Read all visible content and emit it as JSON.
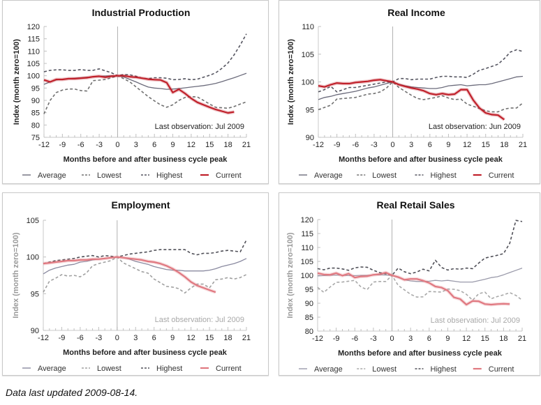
{
  "footer": {
    "text": "Data last updated 2009-08-14."
  },
  "chart_data": [
    {
      "type": "line",
      "title": "Industrial Production",
      "xlabel": "Months before and after business cycle peak",
      "ylabel": "Index (month zero=100)",
      "xlim": [
        -12,
        21
      ],
      "ylim": [
        75,
        120
      ],
      "xticks": [
        -12,
        -9,
        -6,
        -3,
        0,
        3,
        6,
        9,
        12,
        15,
        18,
        21
      ],
      "yticks": [
        75,
        80,
        85,
        90,
        95,
        100,
        105,
        110,
        115,
        120
      ],
      "annotation": "Last observation: Jul 2009",
      "legend": [
        "Average",
        "Lowest",
        "Highest",
        "Current"
      ],
      "legend_position": "bottom",
      "x": [
        -12,
        -11,
        -10,
        -9,
        -8,
        -7,
        -6,
        -5,
        -4,
        -3,
        -2,
        -1,
        0,
        1,
        2,
        3,
        4,
        5,
        6,
        7,
        8,
        9,
        10,
        11,
        12,
        13,
        14,
        15,
        16,
        17,
        18,
        19,
        20,
        21
      ],
      "series": [
        {
          "name": "Average",
          "style": "solid",
          "color": "#6b6b7b",
          "values": [
            96.5,
            97.5,
            98.3,
            98.6,
            98.8,
            99.0,
            99.2,
            99.4,
            99.6,
            99.8,
            99.9,
            100.0,
            100.0,
            99.5,
            98.5,
            97.5,
            96.4,
            95.4,
            95.0,
            94.8,
            94.5,
            94.6,
            94.8,
            95.1,
            95.4,
            95.7,
            96.0,
            96.4,
            96.9,
            97.6,
            98.4,
            99.2,
            100.1,
            101.0
          ]
        },
        {
          "name": "Lowest",
          "style": "dashed",
          "color": "#707070",
          "values": [
            84.5,
            90.0,
            93.2,
            94.2,
            94.6,
            94.6,
            94.0,
            93.8,
            98.0,
            98.2,
            98.5,
            99.2,
            100.0,
            98.8,
            97.5,
            95.5,
            93.5,
            91.5,
            89.8,
            88.2,
            87.2,
            88.2,
            90.0,
            91.2,
            91.5,
            91.4,
            90.0,
            88.5,
            87.2,
            87.0,
            86.8,
            87.5,
            88.5,
            89.4
          ]
        },
        {
          "name": "Highest",
          "style": "dashed",
          "color": "#555560",
          "values": [
            101.6,
            102.2,
            102.4,
            102.4,
            102.2,
            102.2,
            102.5,
            102.2,
            102.2,
            102.8,
            102.0,
            101.2,
            100.0,
            100.5,
            100.4,
            99.8,
            99.0,
            98.8,
            99.2,
            99.2,
            99.0,
            98.4,
            98.5,
            98.8,
            98.4,
            98.6,
            99.4,
            100.2,
            101.2,
            103.0,
            105.2,
            108.5,
            112.5,
            117.0
          ]
        },
        {
          "name": "Current",
          "style": "solid-bold",
          "color": "#c0202a",
          "values": [
            98.3,
            97.5,
            98.5,
            98.5,
            98.8,
            98.8,
            99.0,
            99.2,
            99.6,
            99.8,
            99.4,
            99.8,
            100.0,
            100.0,
            99.6,
            99.4,
            99.0,
            98.6,
            98.4,
            98.3,
            97.2,
            93.2,
            94.5,
            92.8,
            90.8,
            89.2,
            88.2,
            87.2,
            86.3,
            85.6,
            84.9,
            85.3,
            null,
            null
          ]
        }
      ]
    },
    {
      "type": "line",
      "title": "Real Income",
      "xlabel": "Months before and after business cycle peak",
      "ylabel": "Index (month zero=100)",
      "xlim": [
        -12,
        21
      ],
      "ylim": [
        90,
        110
      ],
      "xticks": [
        -12,
        -9,
        -6,
        -3,
        0,
        3,
        6,
        9,
        12,
        15,
        18,
        21
      ],
      "yticks": [
        90,
        95,
        100,
        105,
        110
      ],
      "annotation": "Last observation: Jun 2009",
      "legend": [
        "Average",
        "Lowest",
        "Highest",
        "Current"
      ],
      "legend_position": "bottom",
      "x": [
        -12,
        -11,
        -10,
        -9,
        -8,
        -7,
        -6,
        -5,
        -4,
        -3,
        -2,
        -1,
        0,
        1,
        2,
        3,
        4,
        5,
        6,
        7,
        8,
        9,
        10,
        11,
        12,
        13,
        14,
        15,
        16,
        17,
        18,
        19,
        20,
        21
      ],
      "series": [
        {
          "name": "Average",
          "style": "solid",
          "color": "#6b6b7b",
          "values": [
            96.8,
            97.2,
            97.4,
            97.7,
            97.9,
            98.1,
            98.3,
            98.6,
            98.9,
            99.1,
            99.4,
            99.7,
            100.0,
            99.6,
            99.3,
            99.1,
            99.0,
            98.9,
            98.8,
            98.8,
            99.0,
            99.3,
            99.4,
            99.5,
            99.3,
            99.4,
            99.5,
            99.5,
            99.7,
            100.0,
            100.3,
            100.6,
            100.9,
            101.0
          ]
        },
        {
          "name": "Lowest",
          "style": "dashed",
          "color": "#707070",
          "values": [
            95.0,
            95.4,
            95.8,
            96.9,
            97.0,
            97.1,
            97.2,
            97.5,
            97.8,
            97.9,
            98.2,
            98.9,
            100.0,
            99.0,
            98.3,
            97.6,
            97.0,
            96.8,
            97.0,
            97.2,
            97.5,
            97.1,
            96.8,
            96.9,
            96.0,
            95.6,
            95.2,
            94.8,
            94.6,
            94.6,
            95.1,
            95.3,
            95.3,
            96.2
          ]
        },
        {
          "name": "Highest",
          "style": "dashed",
          "color": "#555560",
          "values": [
            98.2,
            98.6,
            99.2,
            98.2,
            98.6,
            99.0,
            99.0,
            99.2,
            99.4,
            99.6,
            99.8,
            100.0,
            100.0,
            100.6,
            100.6,
            100.4,
            100.5,
            100.5,
            100.5,
            100.8,
            101.0,
            101.0,
            100.9,
            100.9,
            100.8,
            101.4,
            102.1,
            102.4,
            102.8,
            103.2,
            104.2,
            105.4,
            105.8,
            105.5
          ]
        },
        {
          "name": "Current",
          "style": "solid-bold",
          "color": "#c0202a",
          "values": [
            99.3,
            99.1,
            99.5,
            99.8,
            99.7,
            99.7,
            99.9,
            100.0,
            100.1,
            100.3,
            100.4,
            100.2,
            100.0,
            99.5,
            99.2,
            98.9,
            98.7,
            98.4,
            97.9,
            97.7,
            97.9,
            97.7,
            97.8,
            98.6,
            98.6,
            96.7,
            95.3,
            94.4,
            94.1,
            94.0,
            93.2,
            null,
            null,
            null
          ]
        }
      ]
    },
    {
      "type": "line",
      "title": "Employment",
      "xlabel": "Months before and after business cycle peak",
      "ylabel": "Index (month zero=100)",
      "xlim": [
        -12,
        21
      ],
      "ylim": [
        90,
        105
      ],
      "xticks": [
        -12,
        -9,
        -6,
        -3,
        0,
        3,
        6,
        9,
        12,
        15,
        18,
        21
      ],
      "yticks": [
        90,
        95,
        100,
        105
      ],
      "annotation": "Last observation: Jul 2009",
      "legend": [
        "Average",
        "Lowest",
        "Highest",
        "Current"
      ],
      "legend_position": "bottom",
      "x": [
        -12,
        -11,
        -10,
        -9,
        -8,
        -7,
        -6,
        -5,
        -4,
        -3,
        -2,
        -1,
        0,
        1,
        2,
        3,
        4,
        5,
        6,
        7,
        8,
        9,
        10,
        11,
        12,
        13,
        14,
        15,
        16,
        17,
        18,
        19,
        20,
        21
      ],
      "series": [
        {
          "name": "Average",
          "style": "solid",
          "color": "#8a8aa0",
          "values": [
            97.7,
            98.2,
            98.5,
            98.7,
            98.9,
            99.0,
            99.3,
            99.4,
            99.6,
            99.7,
            99.8,
            99.9,
            100.0,
            99.9,
            99.7,
            99.4,
            99.2,
            99.0,
            98.7,
            98.5,
            98.3,
            98.2,
            98.2,
            98.1,
            98.1,
            98.1,
            98.1,
            98.2,
            98.4,
            98.7,
            98.9,
            99.1,
            99.4,
            99.8
          ]
        },
        {
          "name": "Lowest",
          "style": "dashed",
          "color": "#a0a0a0",
          "values": [
            95.2,
            96.7,
            97.1,
            97.6,
            97.4,
            97.5,
            97.3,
            97.8,
            98.8,
            99.1,
            99.3,
            99.5,
            100.0,
            99.2,
            98.8,
            98.4,
            98.0,
            97.8,
            97.0,
            96.5,
            96.0,
            95.9,
            95.7,
            95.1,
            95.8,
            96.3,
            96.3,
            95.8,
            96.9,
            97.0,
            97.2,
            97.0,
            97.2,
            97.6
          ]
        },
        {
          "name": "Highest",
          "style": "dashed",
          "color": "#505058",
          "values": [
            99.1,
            99.3,
            99.5,
            99.6,
            99.7,
            99.8,
            100.0,
            100.1,
            100.2,
            100.0,
            100.2,
            100.1,
            100.0,
            100.2,
            100.4,
            100.5,
            100.6,
            100.7,
            100.9,
            101.0,
            101.0,
            101.0,
            101.0,
            101.0,
            100.5,
            100.3,
            100.5,
            100.5,
            100.6,
            100.8,
            100.9,
            100.8,
            100.7,
            102.3
          ]
        },
        {
          "name": "Current",
          "style": "solid-bold",
          "color": "#e07880",
          "values": [
            99.1,
            99.2,
            99.3,
            99.4,
            99.5,
            99.5,
            99.6,
            99.6,
            99.7,
            99.7,
            99.8,
            99.9,
            100.0,
            99.9,
            99.8,
            99.7,
            99.6,
            99.4,
            99.3,
            99.1,
            98.8,
            98.4,
            97.9,
            97.3,
            96.6,
            96.1,
            95.8,
            95.5,
            95.2,
            null,
            null,
            null,
            null,
            null
          ]
        }
      ]
    },
    {
      "type": "line",
      "title": "Real Retail Sales",
      "xlabel": "Months before and after business cycle peak",
      "ylabel": "Index (month zero=100)",
      "xlim": [
        -12,
        21
      ],
      "ylim": [
        80,
        120
      ],
      "xticks": [
        -12,
        -9,
        -6,
        -3,
        0,
        3,
        6,
        9,
        12,
        15,
        18,
        21
      ],
      "yticks": [
        80,
        85,
        90,
        95,
        100,
        105,
        110,
        115,
        120
      ],
      "annotation": "Last observation: Jul 2009",
      "legend": [
        "Average",
        "Lowest",
        "Highest",
        "Current"
      ],
      "legend_position": "bottom",
      "x": [
        -12,
        -11,
        -10,
        -9,
        -8,
        -7,
        -6,
        -5,
        -4,
        -3,
        -2,
        -1,
        0,
        1,
        2,
        3,
        4,
        5,
        6,
        7,
        8,
        9,
        10,
        11,
        12,
        13,
        14,
        15,
        16,
        17,
        18,
        19,
        20,
        21
      ],
      "series": [
        {
          "name": "Average",
          "style": "solid",
          "color": "#9a9aaa",
          "values": [
            99.8,
            99.9,
            100.0,
            100.1,
            100.0,
            99.9,
            99.9,
            100.0,
            100.0,
            100.1,
            100.2,
            100.1,
            100.0,
            99.2,
            98.4,
            98.0,
            97.8,
            97.8,
            97.9,
            98.2,
            98.0,
            98.2,
            97.9,
            97.6,
            97.6,
            97.6,
            98.1,
            98.6,
            99.2,
            99.5,
            100.2,
            101.0,
            101.8,
            102.6
          ]
        },
        {
          "name": "Lowest",
          "style": "dashed",
          "color": "#a8a8a8",
          "values": [
            95.7,
            93.9,
            95.8,
            97.5,
            97.6,
            97.9,
            98.2,
            95.8,
            94.9,
            97.6,
            97.8,
            97.8,
            100.0,
            96.4,
            94.8,
            93.2,
            92.2,
            92.3,
            94.2,
            94.1,
            94.0,
            95.1,
            95.0,
            94.5,
            93.2,
            91.1,
            93.4,
            94.0,
            91.6,
            92.4,
            93.0,
            93.8,
            92.8,
            91.1
          ]
        },
        {
          "name": "Highest",
          "style": "dashed",
          "color": "#505058",
          "values": [
            102.4,
            102.0,
            102.6,
            102.6,
            102.3,
            101.8,
            102.7,
            103.0,
            102.9,
            101.8,
            101.0,
            100.5,
            100.0,
            102.6,
            101.3,
            100.6,
            101.2,
            102.2,
            101.6,
            105.4,
            102.8,
            101.9,
            102.4,
            102.2,
            102.6,
            102.4,
            104.4,
            106.2,
            106.7,
            107.2,
            107.8,
            111.5,
            119.7,
            119.3
          ]
        },
        {
          "name": "Current",
          "style": "solid-bold",
          "color": "#e07880",
          "values": [
            100.8,
            100.3,
            100.2,
            100.8,
            99.9,
            100.6,
            99.2,
            99.6,
            99.7,
            100.2,
            100.4,
            101.0,
            100.0,
            99.4,
            98.4,
            98.7,
            98.7,
            98.1,
            97.3,
            96.0,
            95.6,
            94.5,
            92.1,
            91.5,
            89.5,
            90.8,
            90.7,
            89.7,
            89.5,
            89.7,
            89.8,
            89.7,
            null,
            null
          ]
        }
      ]
    }
  ]
}
